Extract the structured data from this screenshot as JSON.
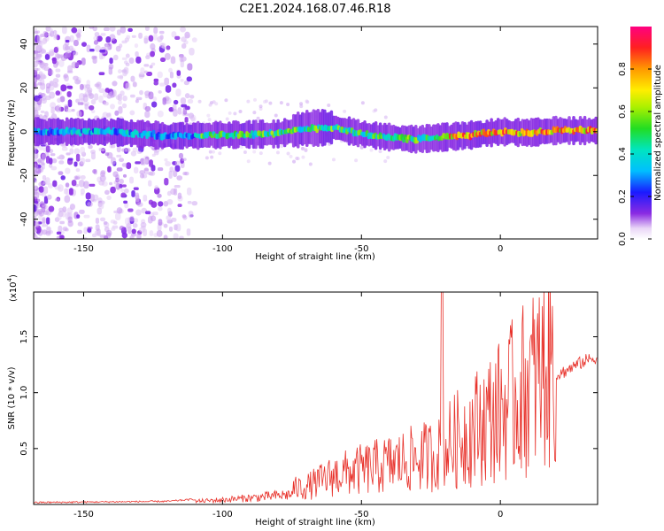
{
  "title": "C2E1.2024.168.07.46.R18",
  "chart_data": [
    {
      "type": "heatmap",
      "xlabel": "Height of straight line (km)",
      "ylabel": "Frequency (Hz)",
      "xlim": [
        -168,
        35
      ],
      "ylim": [
        -49,
        48
      ],
      "x_ticks": [
        -150,
        -100,
        -50,
        0
      ],
      "x_tick_labels": [
        "-150",
        "-100",
        "-50",
        "0"
      ],
      "y_ticks": [
        -40,
        -20,
        0,
        20,
        40
      ],
      "y_tick_labels": [
        "-40",
        "-20",
        "0",
        "20",
        "40"
      ],
      "colorbar": {
        "label": "Normalized spectral amplitude",
        "range": [
          0,
          1
        ],
        "ticks": [
          0.0,
          0.2,
          0.4,
          0.6,
          0.8
        ],
        "tick_labels": [
          "0.0",
          "0.2",
          "0.4",
          "0.6",
          "0.8"
        ]
      },
      "ridge_center_hz": [
        {
          "x": -165,
          "y": 0.0
        },
        {
          "x": -140,
          "y": 0.0
        },
        {
          "x": -120,
          "y": -2.0
        },
        {
          "x": -100,
          "y": -1.5
        },
        {
          "x": -80,
          "y": -1.0
        },
        {
          "x": -70,
          "y": 1.5
        },
        {
          "x": -60,
          "y": 2.0
        },
        {
          "x": -50,
          "y": -1.0
        },
        {
          "x": -40,
          "y": -2.5
        },
        {
          "x": -30,
          "y": -3.5
        },
        {
          "x": -20,
          "y": -2.5
        },
        {
          "x": -10,
          "y": -1.5
        },
        {
          "x": 0,
          "y": 0.0
        },
        {
          "x": 10,
          "y": -0.5
        },
        {
          "x": 20,
          "y": 0.5
        },
        {
          "x": 33,
          "y": 0.5
        }
      ],
      "grid": false
    },
    {
      "type": "line",
      "xlabel": "Height of straight line (km)",
      "ylabel": "SNR (10 * v/v)",
      "y_scale_label": "(x10",
      "y_scale_exponent": "4",
      "y_scale_suffix": ")",
      "xlim": [
        -168,
        35
      ],
      "ylim": [
        0,
        1.9
      ],
      "x_ticks": [
        -150,
        -100,
        -50,
        0
      ],
      "x_tick_labels": [
        "-150",
        "-100",
        "-50",
        "0"
      ],
      "y_ticks": [
        0.5,
        1.0,
        1.5
      ],
      "y_tick_labels": [
        "0.5",
        "1.0",
        "1.5"
      ],
      "color": "#e8322b",
      "trend": [
        {
          "x": -168,
          "y": 0.01
        },
        {
          "x": -120,
          "y": 0.02
        },
        {
          "x": -100,
          "y": 0.06
        },
        {
          "x": -85,
          "y": 0.1
        },
        {
          "x": -70,
          "y": 0.15
        },
        {
          "x": -60,
          "y": 0.25
        },
        {
          "x": -50,
          "y": 0.3
        },
        {
          "x": -40,
          "y": 0.35
        },
        {
          "x": -30,
          "y": 0.4
        },
        {
          "x": -20,
          "y": 0.45
        },
        {
          "x": -10,
          "y": 0.6
        },
        {
          "x": 0,
          "y": 0.75
        },
        {
          "x": 10,
          "y": 0.95
        },
        {
          "x": 20,
          "y": 1.15
        },
        {
          "x": 30,
          "y": 1.28
        },
        {
          "x": 35,
          "y": 1.32
        }
      ],
      "spike": {
        "x": -21,
        "y": 1.95
      },
      "grid": false
    }
  ]
}
